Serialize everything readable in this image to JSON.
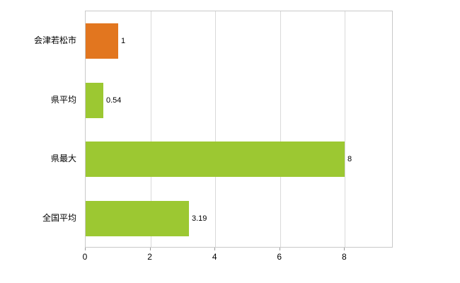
{
  "chart_data": {
    "type": "bar",
    "orientation": "horizontal",
    "title": "",
    "xlabel": "",
    "ylabel": "",
    "categories": [
      "会津若松市",
      "県平均",
      "県最大",
      "全国平均"
    ],
    "values": [
      1,
      0.54,
      8,
      3.19
    ],
    "value_labels": [
      "1",
      "0.54",
      "8",
      "3.19"
    ],
    "bar_colors": [
      "#e2761f",
      "#9cc832",
      "#9cc832",
      "#9cc832"
    ],
    "xlim": [
      0,
      9.5
    ],
    "xticks": [
      "0",
      "2",
      "4",
      "6",
      "8"
    ],
    "xtick_values": [
      0,
      2,
      4,
      6,
      8
    ],
    "grid": true,
    "legend_position": "none",
    "colors": {
      "accent_orange": "#e2761f",
      "accent_green": "#9cc832",
      "grid_color": "#d9d9d9",
      "axis_color": "#9a9a9a",
      "border_color": "#c9c9c9",
      "label_color": "#000000",
      "background": "#ffffff"
    }
  }
}
